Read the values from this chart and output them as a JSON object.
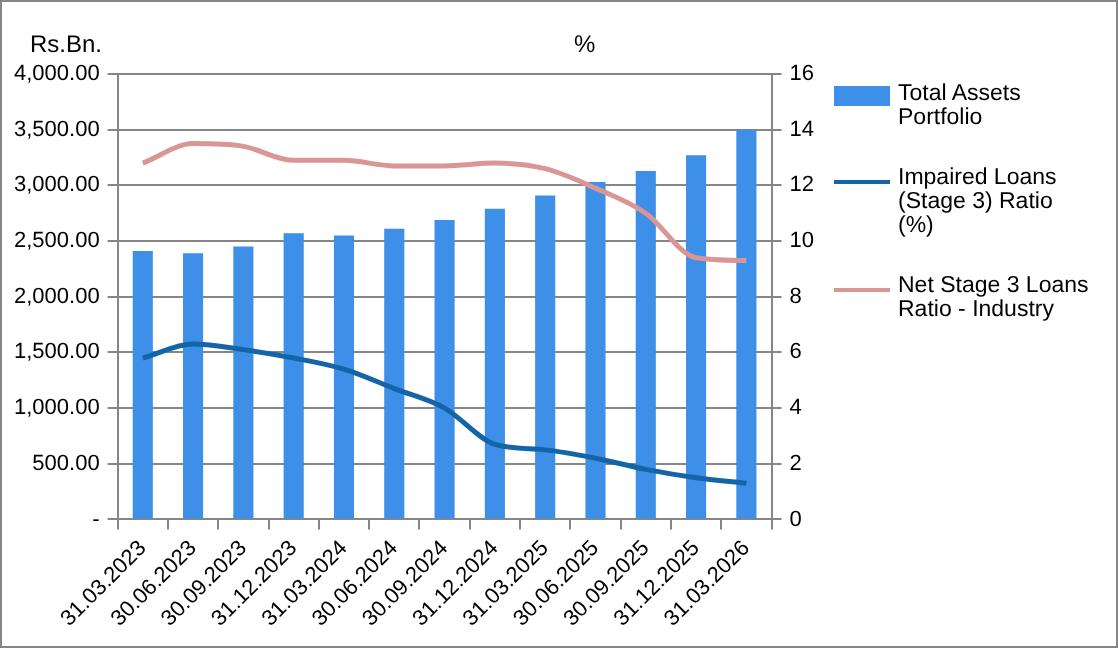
{
  "chart_data": {
    "type": "bar",
    "ylabel": "Rs.Bn.",
    "y2label": "%",
    "categories": [
      "31.03.2023",
      "30.06.2023",
      "30.09.2023",
      "31.12.2023",
      "31.03.2024",
      "30.06.2024",
      "30.09.2024",
      "31.12.2024",
      "31.03.2025",
      "30.06.2025",
      "30.09.2025",
      "31.12.2025",
      "31.03.2026"
    ],
    "series": [
      {
        "name": "Total Assets Portfolio",
        "color": "#3d8fe8",
        "values": [
          2410,
          2390,
          2450,
          2570,
          2550,
          2610,
          2690,
          2790,
          2910,
          3030,
          3130,
          3270,
          3500
        ]
      },
      {
        "name": "Impaired Loans (Stage 3) Ratio (%)",
        "type": "line",
        "axis": "y2",
        "color": "#1464a8",
        "values": [
          5.8,
          6.3,
          6.1,
          5.8,
          5.4,
          4.7,
          4.0,
          2.7,
          2.5,
          2.2,
          1.8,
          1.5,
          1.3
        ]
      },
      {
        "name": "Net Stage 3 Loans Ratio - Industry",
        "type": "line",
        "axis": "y2",
        "color": "#d99694",
        "values": [
          12.8,
          13.5,
          13.4,
          12.9,
          12.9,
          12.7,
          12.7,
          12.8,
          12.6,
          11.9,
          11.0,
          9.4,
          9.3
        ]
      }
    ],
    "ylim": [
      0,
      4000
    ],
    "yticks": [
      {
        "value": 0,
        "label": "-"
      },
      {
        "value": 500,
        "label": "500.00"
      },
      {
        "value": 1000,
        "label": "1,000.00"
      },
      {
        "value": 1500,
        "label": "1,500.00"
      },
      {
        "value": 2000,
        "label": "2,000.00"
      },
      {
        "value": 2500,
        "label": "2,500.00"
      },
      {
        "value": 3000,
        "label": "3,000.00"
      },
      {
        "value": 3500,
        "label": "3,500.00"
      },
      {
        "value": 4000,
        "label": "4,000.00"
      }
    ],
    "y2lim": [
      0,
      16
    ],
    "y2ticks": [
      0,
      2,
      4,
      6,
      8,
      10,
      12,
      14,
      16
    ],
    "grid": "y",
    "legend": "right",
    "marker": "none",
    "line_style": "solid"
  }
}
